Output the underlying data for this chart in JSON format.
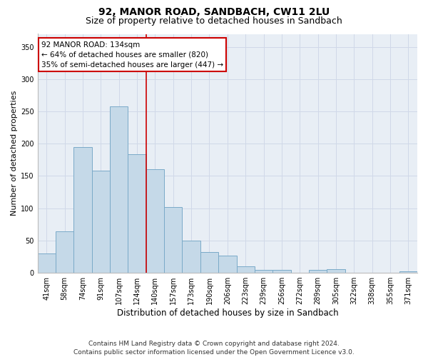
{
  "title": "92, MANOR ROAD, SANDBACH, CW11 2LU",
  "subtitle": "Size of property relative to detached houses in Sandbach",
  "xlabel": "Distribution of detached houses by size in Sandbach",
  "ylabel": "Number of detached properties",
  "categories": [
    "41sqm",
    "58sqm",
    "74sqm",
    "91sqm",
    "107sqm",
    "124sqm",
    "140sqm",
    "157sqm",
    "173sqm",
    "190sqm",
    "206sqm",
    "223sqm",
    "239sqm",
    "256sqm",
    "272sqm",
    "289sqm",
    "305sqm",
    "322sqm",
    "338sqm",
    "355sqm",
    "371sqm"
  ],
  "values": [
    30,
    64,
    195,
    158,
    258,
    184,
    160,
    102,
    50,
    32,
    27,
    10,
    4,
    5,
    0,
    5,
    6,
    0,
    0,
    0,
    2
  ],
  "bar_color": "#c5d9e8",
  "bar_edge_color": "#7aaac8",
  "grid_color": "#d0d8e8",
  "background_color": "#e8eef5",
  "marker_label": "92 MANOR ROAD: 134sqm",
  "annotation_line1": "← 64% of detached houses are smaller (820)",
  "annotation_line2": "35% of semi-detached houses are larger (447) →",
  "annotation_box_color": "#ffffff",
  "annotation_box_edge": "#cc0000",
  "marker_line_color": "#cc0000",
  "ylim": [
    0,
    370
  ],
  "yticks": [
    0,
    50,
    100,
    150,
    200,
    250,
    300,
    350
  ],
  "footer": "Contains HM Land Registry data © Crown copyright and database right 2024.\nContains public sector information licensed under the Open Government Licence v3.0.",
  "title_fontsize": 10,
  "subtitle_fontsize": 9,
  "xlabel_fontsize": 8.5,
  "ylabel_fontsize": 8,
  "tick_fontsize": 7,
  "annotation_fontsize": 7.5,
  "footer_fontsize": 6.5
}
